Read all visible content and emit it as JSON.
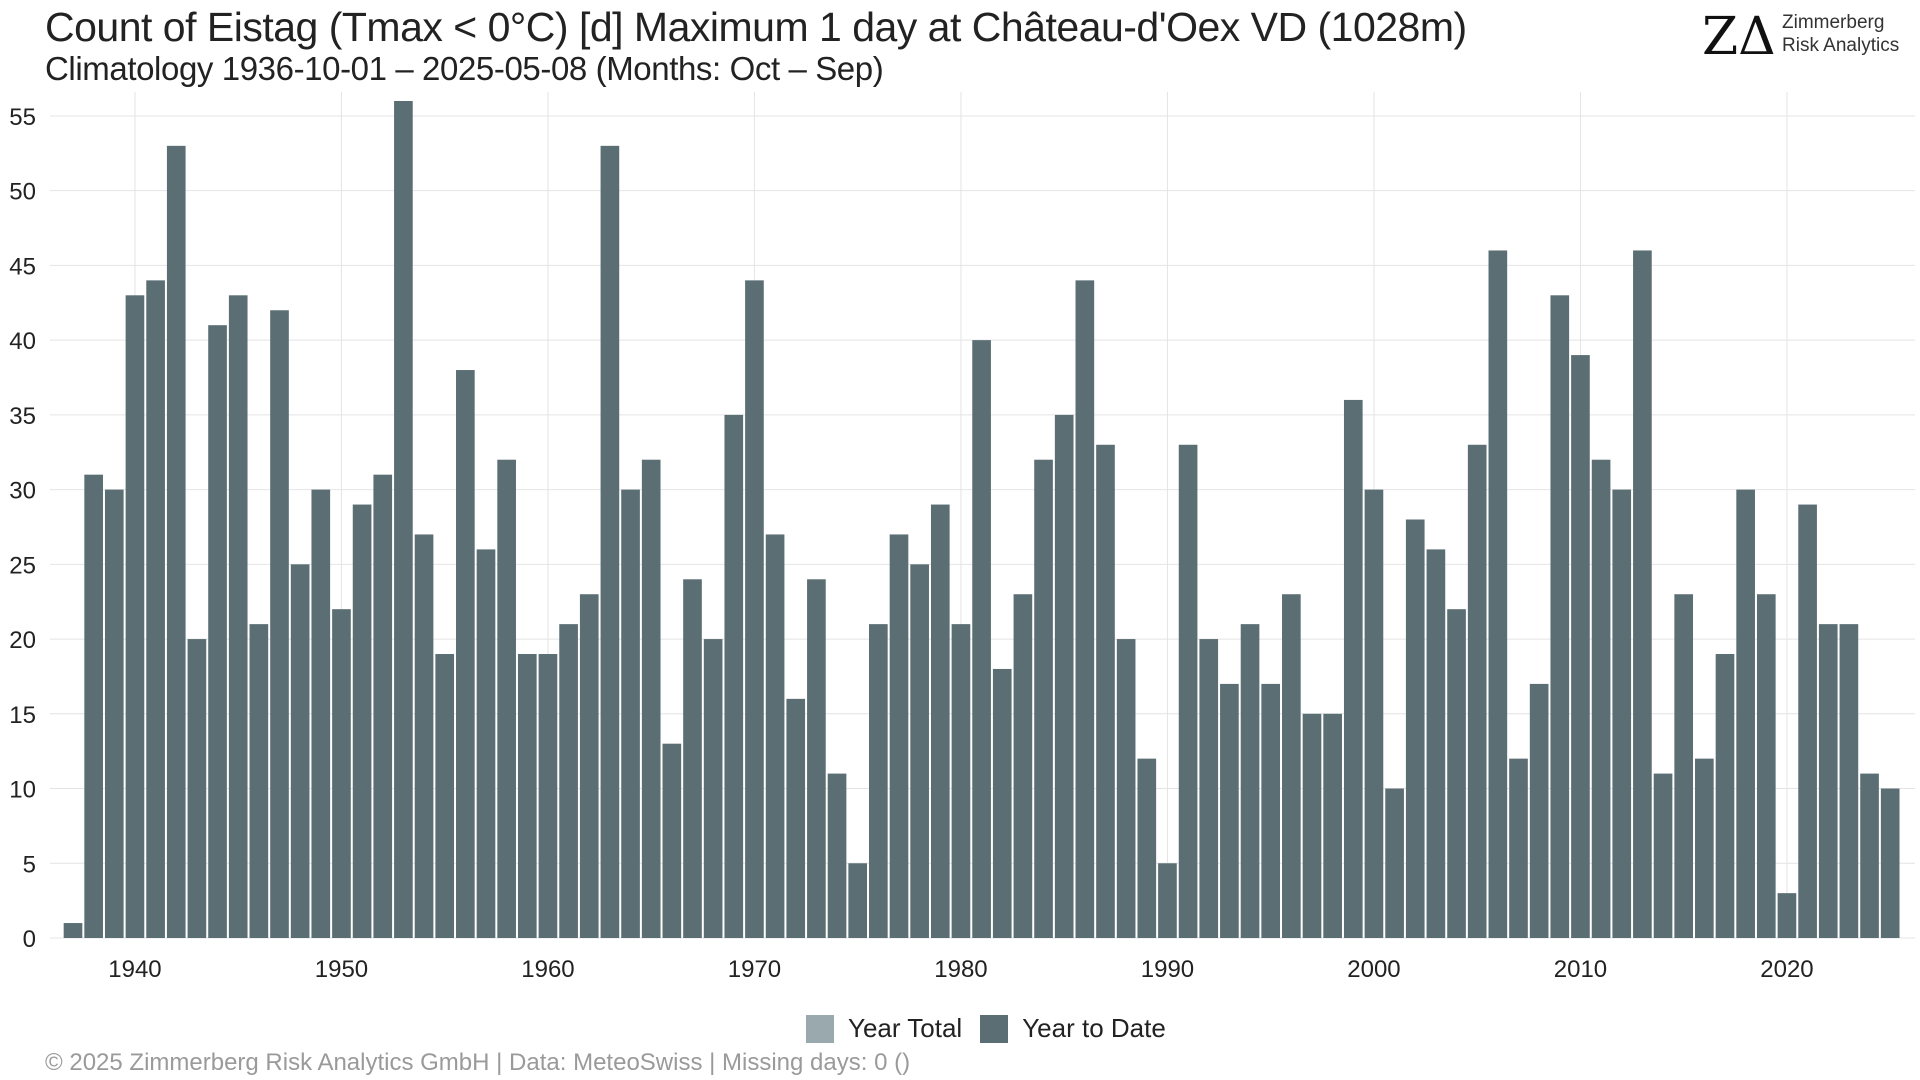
{
  "header": {
    "title": "Count of Eistag (Tmax < 0°C) [d] Maximum 1 day at Château-d'Oex  VD (1028m)",
    "subtitle": "Climatology 1936-10-01 – 2025-05-08 (Months: Oct – Sep)"
  },
  "logo": {
    "mark": "ZΔ",
    "line1": "Zimmerberg",
    "line2": "Risk Analytics"
  },
  "legend": {
    "items": [
      {
        "label": "Year Total",
        "color": "#9aa9ae"
      },
      {
        "label": "Year to Date",
        "color": "#5a6e74"
      }
    ]
  },
  "footer": "©  2025 Zimmerberg Risk Analytics GmbH | Data: MeteoSwiss | Missing days: 0 ()",
  "chart_data": {
    "type": "bar",
    "bar_color": "#5a6e74",
    "grid": true,
    "ylim": [
      0,
      56
    ],
    "y_ticks": [
      0,
      5,
      10,
      15,
      20,
      25,
      30,
      35,
      40,
      45,
      50,
      55
    ],
    "x_ticks": [
      1940,
      1950,
      1960,
      1970,
      1980,
      1990,
      2000,
      2010,
      2020
    ],
    "xlabel": "",
    "ylabel": "",
    "legend_position": "bottom",
    "x": [
      1937,
      1938,
      1939,
      1940,
      1941,
      1942,
      1943,
      1944,
      1945,
      1946,
      1947,
      1948,
      1949,
      1950,
      1951,
      1952,
      1953,
      1954,
      1955,
      1956,
      1957,
      1958,
      1959,
      1960,
      1961,
      1962,
      1963,
      1964,
      1965,
      1966,
      1967,
      1968,
      1969,
      1970,
      1971,
      1972,
      1973,
      1974,
      1975,
      1976,
      1977,
      1978,
      1979,
      1980,
      1981,
      1982,
      1983,
      1984,
      1985,
      1986,
      1987,
      1988,
      1989,
      1990,
      1991,
      1992,
      1993,
      1994,
      1995,
      1996,
      1997,
      1998,
      1999,
      2000,
      2001,
      2002,
      2003,
      2004,
      2005,
      2006,
      2007,
      2008,
      2009,
      2010,
      2011,
      2012,
      2013,
      2014,
      2015,
      2016,
      2017,
      2018,
      2019,
      2020,
      2021,
      2022,
      2023,
      2024,
      2025
    ],
    "series": [
      {
        "name": "Year to Date",
        "values": [
          1,
          31,
          30,
          43,
          44,
          53,
          20,
          41,
          43,
          21,
          42,
          25,
          30,
          22,
          29,
          31,
          56,
          27,
          19,
          38,
          26,
          32,
          19,
          19,
          21,
          23,
          53,
          30,
          32,
          13,
          24,
          20,
          35,
          44,
          27,
          16,
          24,
          11,
          5,
          21,
          27,
          25,
          29,
          21,
          40,
          18,
          23,
          32,
          35,
          44,
          33,
          20,
          12,
          5,
          33,
          20,
          17,
          21,
          17,
          23,
          15,
          15,
          36,
          30,
          10,
          28,
          26,
          22,
          33,
          46,
          12,
          17,
          43,
          39,
          32,
          30,
          46,
          11,
          23,
          12,
          19,
          30,
          23,
          3,
          29,
          21,
          21,
          11,
          10
        ]
      }
    ]
  }
}
